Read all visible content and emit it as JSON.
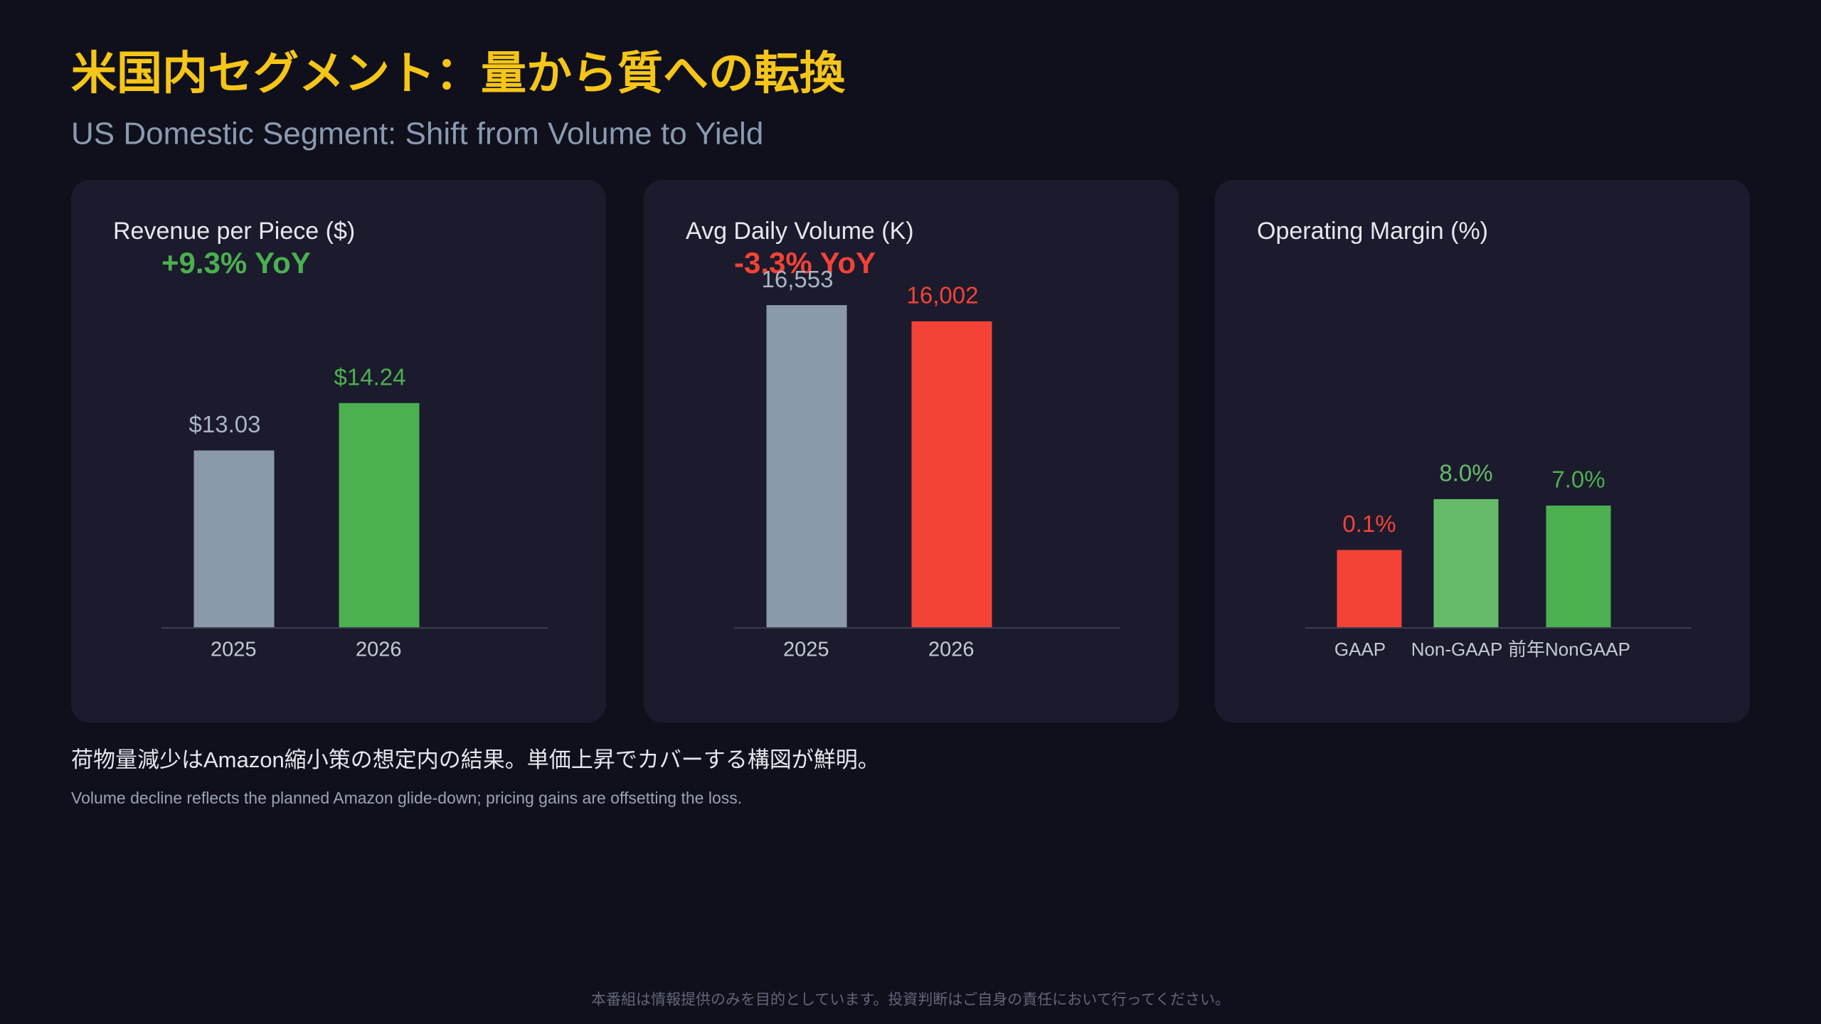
{
  "title": "米国内セグメント：量から質への転換",
  "subtitle": "US Domestic Segment: Shift from Volume to Yield",
  "note_ja": "荷物量減少はAmazon縮小策の想定内の結果。単価上昇でカバーする構図が鮮明。",
  "note_en": "Volume decline reflects the planned Amazon glide-down; pricing gains are offsetting the loss.",
  "disclaimer": "本番組は情報提供のみを目的としています。投資判断はご自身の責任において行ってください。",
  "chart_data": [
    {
      "type": "bar",
      "title": "Revenue per Piece ($)",
      "annotation": "+9.3% YoY",
      "annotation_color": "#4caf50",
      "categories": [
        "2025",
        "2026"
      ],
      "values": [
        13.03,
        14.24
      ],
      "value_labels": [
        "$13.03",
        "$14.24"
      ],
      "colors": [
        "#8a9aab",
        "#4caf50"
      ],
      "ylim": [
        8.5,
        16.85
      ]
    },
    {
      "type": "bar",
      "title": "Avg Daily Volume (K)",
      "annotation": "-3.3% YoY",
      "annotation_color": "#f44336",
      "categories": [
        "2025",
        "2026"
      ],
      "values": [
        16553,
        16002
      ],
      "value_labels": [
        "16,553",
        "16,002"
      ],
      "colors": [
        "#8a9aab",
        "#f44336"
      ],
      "ylim": [
        5600,
        16700
      ]
    },
    {
      "type": "bar",
      "title": "Operating Margin (%)",
      "categories": [
        "GAAP",
        "Non-GAAP",
        "前年NonGAAP"
      ],
      "values": [
        0.1,
        8.0,
        7.0
      ],
      "value_labels": [
        "0.1%",
        "8.0%",
        "7.0%"
      ],
      "colors": [
        "#f44336",
        "#66bb6a",
        "#4caf50"
      ],
      "ylim": [
        -12,
        38.8
      ]
    }
  ]
}
